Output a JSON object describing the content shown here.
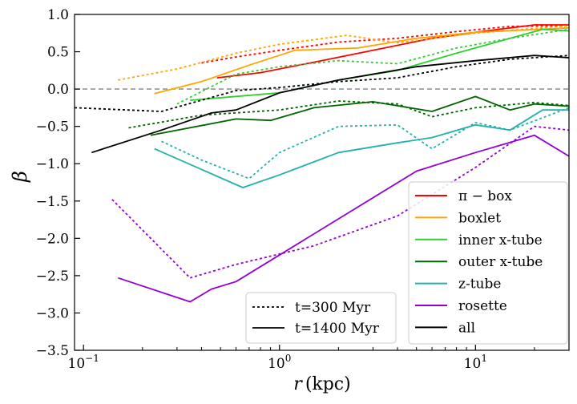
{
  "chart_data": {
    "type": "line",
    "title": "",
    "xlabel": "r (kpc)",
    "xlabel_italic": "r",
    "xlabel_unit": "(kpc)",
    "ylabel": "β",
    "xscale": "log",
    "xlim": [
      0.09,
      30
    ],
    "ylim": [
      -3.5,
      1.0
    ],
    "x_ticks": [
      {
        "value": 0.1,
        "base": "10",
        "exp": "−1"
      },
      {
        "value": 1,
        "base": "10",
        "exp": "0"
      },
      {
        "value": 10,
        "base": "10",
        "exp": "1"
      }
    ],
    "y_ticks": [
      1.0,
      0.5,
      0.0,
      -0.5,
      -1.0,
      -1.5,
      -2.0,
      -2.5,
      -3.0,
      -3.5
    ],
    "y_tick_labels": [
      "1.0",
      "0.5",
      "0.0",
      "−0.5",
      "−1.0",
      "−1.5",
      "−2.0",
      "−2.5",
      "−3.0",
      "−3.5"
    ],
    "reference_line": {
      "y": 0.0,
      "color": "#808080",
      "style": "dashed"
    },
    "series": [
      {
        "name": "π − box",
        "color": "#ff0000",
        "t300": [
          [
            0.4,
            0.35
          ],
          [
            0.6,
            0.43
          ],
          [
            1.0,
            0.52
          ],
          [
            2.0,
            0.63
          ],
          [
            4.0,
            0.68
          ],
          [
            8.0,
            0.77
          ],
          [
            15.0,
            0.84
          ],
          [
            30.0,
            0.85
          ]
        ],
        "t1400": [
          [
            0.48,
            0.15
          ],
          [
            0.8,
            0.22
          ],
          [
            1.5,
            0.36
          ],
          [
            3.0,
            0.52
          ],
          [
            6.0,
            0.68
          ],
          [
            10.0,
            0.76
          ],
          [
            20.0,
            0.86
          ],
          [
            30.0,
            0.86
          ]
        ]
      },
      {
        "name": "boxlet",
        "color": "#ffa500",
        "t300": [
          [
            0.15,
            0.12
          ],
          [
            0.3,
            0.27
          ],
          [
            0.6,
            0.48
          ],
          [
            1.0,
            0.6
          ],
          [
            2.2,
            0.72
          ],
          [
            4.0,
            0.62
          ],
          [
            10.0,
            0.75
          ],
          [
            30.0,
            0.85
          ]
        ],
        "t1400": [
          [
            0.23,
            -0.06
          ],
          [
            0.4,
            0.1
          ],
          [
            0.7,
            0.32
          ],
          [
            1.2,
            0.52
          ],
          [
            2.5,
            0.55
          ],
          [
            5.0,
            0.68
          ],
          [
            10.0,
            0.76
          ],
          [
            30.0,
            0.82
          ]
        ]
      },
      {
        "name": "inner x-tube",
        "color": "#32cd32",
        "t300": [
          [
            0.3,
            -0.2
          ],
          [
            0.6,
            0.2
          ],
          [
            1.0,
            0.3
          ],
          [
            2.0,
            0.38
          ],
          [
            4.0,
            0.34
          ],
          [
            8.0,
            0.55
          ],
          [
            15.0,
            0.68
          ],
          [
            30.0,
            0.8
          ]
        ],
        "t1400": [
          [
            0.35,
            -0.15
          ],
          [
            1.0,
            -0.05
          ],
          [
            2.0,
            0.12
          ],
          [
            4.0,
            0.25
          ],
          [
            8.0,
            0.48
          ],
          [
            15.0,
            0.68
          ],
          [
            22.0,
            0.8
          ],
          [
            30.0,
            0.78
          ]
        ]
      },
      {
        "name": "outer x-tube",
        "color": "#006400",
        "t300": [
          [
            0.17,
            -0.52
          ],
          [
            0.4,
            -0.35
          ],
          [
            1.0,
            -0.28
          ],
          [
            2.0,
            -0.16
          ],
          [
            4.0,
            -0.2
          ],
          [
            6.0,
            -0.37
          ],
          [
            10.0,
            -0.25
          ],
          [
            20.0,
            -0.18
          ],
          [
            30.0,
            -0.22
          ]
        ],
        "t1400": [
          [
            0.22,
            -0.62
          ],
          [
            0.6,
            -0.4
          ],
          [
            0.9,
            -0.42
          ],
          [
            1.5,
            -0.25
          ],
          [
            3.0,
            -0.17
          ],
          [
            6.0,
            -0.3
          ],
          [
            10.0,
            -0.1
          ],
          [
            15.0,
            -0.28
          ],
          [
            20.0,
            -0.2
          ],
          [
            30.0,
            -0.23
          ]
        ]
      },
      {
        "name": "z-tube",
        "color": "#20b2aa",
        "t300": [
          [
            0.25,
            -0.7
          ],
          [
            0.4,
            -0.95
          ],
          [
            0.7,
            -1.2
          ],
          [
            1.0,
            -0.85
          ],
          [
            2.0,
            -0.5
          ],
          [
            4.0,
            -0.48
          ],
          [
            6.0,
            -0.8
          ],
          [
            10.0,
            -0.45
          ],
          [
            15.0,
            -0.55
          ],
          [
            30.0,
            -0.25
          ]
        ],
        "t1400": [
          [
            0.23,
            -0.8
          ],
          [
            0.65,
            -1.32
          ],
          [
            1.0,
            -1.15
          ],
          [
            2.0,
            -0.85
          ],
          [
            4.0,
            -0.72
          ],
          [
            6.0,
            -0.65
          ],
          [
            10.0,
            -0.48
          ],
          [
            15.0,
            -0.55
          ],
          [
            22.0,
            -0.28
          ],
          [
            30.0,
            -0.28
          ]
        ]
      },
      {
        "name": "rosette",
        "color": "#9400d3",
        "t300": [
          [
            0.14,
            -1.48
          ],
          [
            0.35,
            -2.53
          ],
          [
            0.6,
            -2.35
          ],
          [
            1.5,
            -2.1
          ],
          [
            4.0,
            -1.7
          ],
          [
            10.0,
            -1.05
          ],
          [
            20.0,
            -0.5
          ],
          [
            30.0,
            -0.55
          ]
        ],
        "t1400": [
          [
            0.15,
            -2.53
          ],
          [
            0.35,
            -2.85
          ],
          [
            0.45,
            -2.68
          ],
          [
            0.6,
            -2.58
          ],
          [
            5.0,
            -1.1
          ],
          [
            10.0,
            -0.85
          ],
          [
            20.0,
            -0.62
          ],
          [
            30.0,
            -0.9
          ]
        ]
      },
      {
        "name": "all",
        "color": "#000000",
        "t300": [
          [
            0.09,
            -0.25
          ],
          [
            0.25,
            -0.3
          ],
          [
            0.6,
            -0.02
          ],
          [
            1.0,
            0.02
          ],
          [
            2.0,
            0.1
          ],
          [
            4.0,
            0.15
          ],
          [
            8.0,
            0.3
          ],
          [
            15.0,
            0.4
          ],
          [
            30.0,
            0.45
          ]
        ],
        "t1400": [
          [
            0.11,
            -0.85
          ],
          [
            0.25,
            -0.55
          ],
          [
            0.45,
            -0.32
          ],
          [
            0.6,
            -0.28
          ],
          [
            1.0,
            -0.05
          ],
          [
            2.0,
            0.12
          ],
          [
            5.0,
            0.3
          ],
          [
            10.0,
            0.38
          ],
          [
            20.0,
            0.45
          ],
          [
            30.0,
            0.42
          ]
        ]
      }
    ],
    "style_legend": [
      {
        "label": "t=300 Myr",
        "style": "dotted"
      },
      {
        "label": "t=1400 Myr",
        "style": "solid"
      }
    ],
    "legend_placement": "bottom-right"
  }
}
